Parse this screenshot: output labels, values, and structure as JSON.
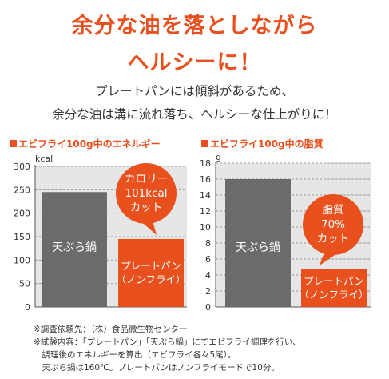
{
  "headline": {
    "line1": "余分な油を落としながら",
    "line2": "ヘルシーに！"
  },
  "subhead": {
    "line1": "プレートパンには傾斜があるため、",
    "line2": "余分な油は溝に流れ落ち、ヘルシーな仕上がりに！"
  },
  "notes": [
    "※調査依頼先：（株）食品微生物センター",
    "※試験内容：「プレートパン」「天ぷら鍋」にてエビフライ調理を行い、",
    "　調理後のエネルギーを算出（エビフライ各々5尾）。",
    "　天ぷら鍋は160℃。プレートパンはノンフライモードで10分。"
  ],
  "colors": {
    "accent": "#e8501e",
    "bar_gray": "#6b6b6b",
    "plot_bg": "#e6e6e6",
    "grid": "#999999"
  },
  "chart_data": [
    {
      "type": "bar",
      "title": "■エビフライ100g中のエネルギー",
      "title_text": "エビフライ100g中のエネルギー",
      "ylabel": "kcal",
      "ylim": [
        0,
        300
      ],
      "yticks": [
        "0",
        "50",
        "100",
        "150",
        "200",
        "250",
        "300"
      ],
      "categories": [
        "天ぷら鍋",
        "プレートパン（ノンフライ）"
      ],
      "bar_labels": [
        [
          "天ぷら鍋"
        ],
        [
          "プレートパン",
          "（ノンフライ）"
        ]
      ],
      "values": [
        245,
        145
      ],
      "bar_colors": [
        "#6b6b6b",
        "#e8501e"
      ],
      "callout": [
        "カロリー",
        "101kcal",
        "カット"
      ],
      "grid": true
    },
    {
      "type": "bar",
      "title": "■エビフライ100g中の脂質",
      "title_text": "エビフライ100g中の脂質",
      "ylabel": "g",
      "ylim": [
        0,
        18
      ],
      "yticks": [
        "0",
        "2",
        "4",
        "6",
        "8",
        "10",
        "12",
        "14",
        "16",
        "18"
      ],
      "categories": [
        "天ぷら鍋",
        "プレートパン（ノンフライ）"
      ],
      "bar_labels": [
        [
          "天ぷら鍋"
        ],
        [
          "プレートパン",
          "（ノンフライ）"
        ]
      ],
      "values": [
        16,
        4.8
      ],
      "bar_colors": [
        "#6b6b6b",
        "#e8501e"
      ],
      "callout": [
        "脂質",
        "70%",
        "カット"
      ],
      "grid": true
    }
  ]
}
